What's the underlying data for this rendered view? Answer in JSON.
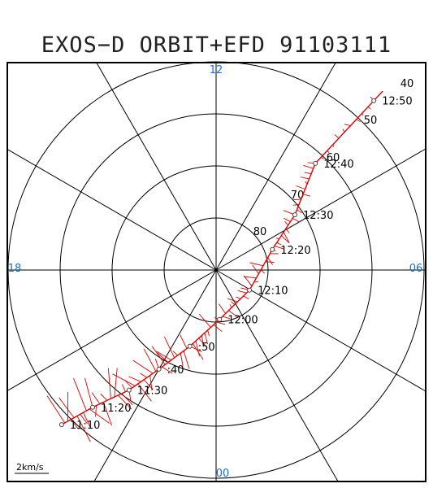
{
  "title": "EXOS−D ORBIT+EFD 91103111",
  "mlt_labels": {
    "top": "12",
    "right": "06",
    "bottom": "00",
    "left": "18"
  },
  "latitude_labels": [
    "80",
    "70",
    "60",
    "50",
    "40"
  ],
  "scale_label": "2km/s",
  "colors": {
    "frame": "#000000",
    "mlt_text": "#1a6fd1",
    "vectors": "#e00000"
  },
  "orbit_points": [
    {
      "time": "12:50",
      "lat": 45.5,
      "mlt_deg": 43
    },
    {
      "time": "12:40",
      "lat": 62.0,
      "mlt_deg": 43
    },
    {
      "time": "12:30",
      "lat": 71.5,
      "mlt_deg": 55
    },
    {
      "time": "12:20",
      "lat": 78.5,
      "mlt_deg": 70
    },
    {
      "time": "12:10",
      "lat": 82.5,
      "mlt_deg": 121
    },
    {
      "time": "12:00",
      "lat": 80.5,
      "mlt_deg": 176
    },
    {
      "time": ":50",
      "lat": 74.5,
      "mlt_deg": 199
    },
    {
      "time": ":40",
      "lat": 68.0,
      "mlt_deg": 210
    },
    {
      "time": "11:30",
      "lat": 61.5,
      "mlt_deg": 216
    },
    {
      "time": "11:20",
      "lat": 54.5,
      "mlt_deg": 222
    },
    {
      "time": "11:10",
      "lat": 48.0,
      "mlt_deg": 225
    }
  ]
}
